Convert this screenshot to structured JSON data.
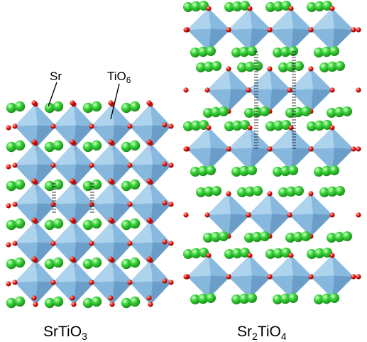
{
  "left_panel": {
    "caption_main": "SrTiO",
    "caption_sub": "3",
    "label_sr": "Sr",
    "label_tio_main": "TiO",
    "label_tio_sub": "6"
  },
  "right_panel": {
    "caption_part1": "Sr",
    "caption_sub1": "2",
    "caption_part2": "TiO",
    "caption_sub2": "4"
  },
  "colors": {
    "sr_atom": "#2ecc2e",
    "sr_atom_light": "#c8ffc0",
    "o_atom": "#e01010",
    "o_atom_light": "#ffb0a0",
    "octahedron_fill": "#7fb4dc",
    "octahedron_dark": "#5a8fbe",
    "octahedron_light": "#b9dcf2",
    "octahedron_edge": "#9ec8e6",
    "bond_dashed": "#222222"
  },
  "icons": {
    "sr_atom": "green-sphere",
    "o_atom": "red-sphere",
    "octahedron": "blue-octahedron"
  }
}
